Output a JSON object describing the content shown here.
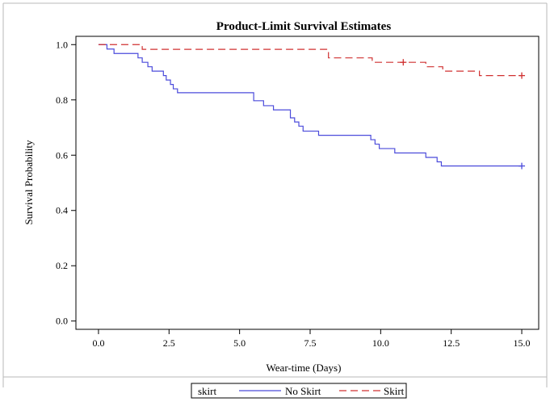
{
  "chart_data": {
    "type": "line",
    "title": "Product-Limit Survival Estimates",
    "xlabel": "Wear-time (Days)",
    "ylabel": "Survival Probability",
    "xlim": [
      -0.8,
      15.6
    ],
    "ylim": [
      -0.03,
      1.03
    ],
    "xticks": [
      0.0,
      2.5,
      5.0,
      7.5,
      10.0,
      12.5,
      15.0
    ],
    "xtick_labels": [
      "0.0",
      "2.5",
      "5.0",
      "7.5",
      "10.0",
      "12.5",
      "15.0"
    ],
    "yticks": [
      0.0,
      0.2,
      0.4,
      0.6,
      0.8,
      1.0
    ],
    "ytick_labels": [
      "0.0",
      "0.2",
      "0.4",
      "0.6",
      "0.8",
      "1.0"
    ],
    "grid": false,
    "legend": {
      "title": "skirt",
      "placement": "bottom-center"
    },
    "series": [
      {
        "name": "No Skirt",
        "color": "#4b4bdb",
        "dash": "solid",
        "steps": [
          [
            0.0,
            1.0
          ],
          [
            0.3,
            0.984
          ],
          [
            0.55,
            0.968
          ],
          [
            1.4,
            0.952
          ],
          [
            1.55,
            0.936
          ],
          [
            1.75,
            0.92
          ],
          [
            1.9,
            0.904
          ],
          [
            2.3,
            0.888
          ],
          [
            2.4,
            0.872
          ],
          [
            2.55,
            0.856
          ],
          [
            2.65,
            0.84
          ],
          [
            2.8,
            0.826
          ],
          [
            5.5,
            0.797
          ],
          [
            5.85,
            0.779
          ],
          [
            6.2,
            0.764
          ],
          [
            6.8,
            0.735
          ],
          [
            6.95,
            0.72
          ],
          [
            7.1,
            0.705
          ],
          [
            7.25,
            0.687
          ],
          [
            7.8,
            0.672
          ],
          [
            9.65,
            0.656
          ],
          [
            9.8,
            0.64
          ],
          [
            9.95,
            0.624
          ],
          [
            10.5,
            0.608
          ],
          [
            11.6,
            0.592
          ],
          [
            12.0,
            0.576
          ],
          [
            12.15,
            0.561
          ]
        ],
        "end_x": 15.0,
        "censored": [
          [
            15.0,
            0.561
          ]
        ]
      },
      {
        "name": "Skirt",
        "color": "#d03030",
        "dash": "dashed",
        "steps": [
          [
            0.0,
            1.0
          ],
          [
            1.55,
            0.983
          ],
          [
            8.15,
            0.952
          ],
          [
            9.7,
            0.936
          ],
          [
            11.6,
            0.92
          ],
          [
            12.2,
            0.904
          ],
          [
            13.5,
            0.888
          ]
        ],
        "end_x": 15.0,
        "censored": [
          [
            10.8,
            0.936
          ],
          [
            15.0,
            0.888
          ]
        ]
      }
    ]
  }
}
